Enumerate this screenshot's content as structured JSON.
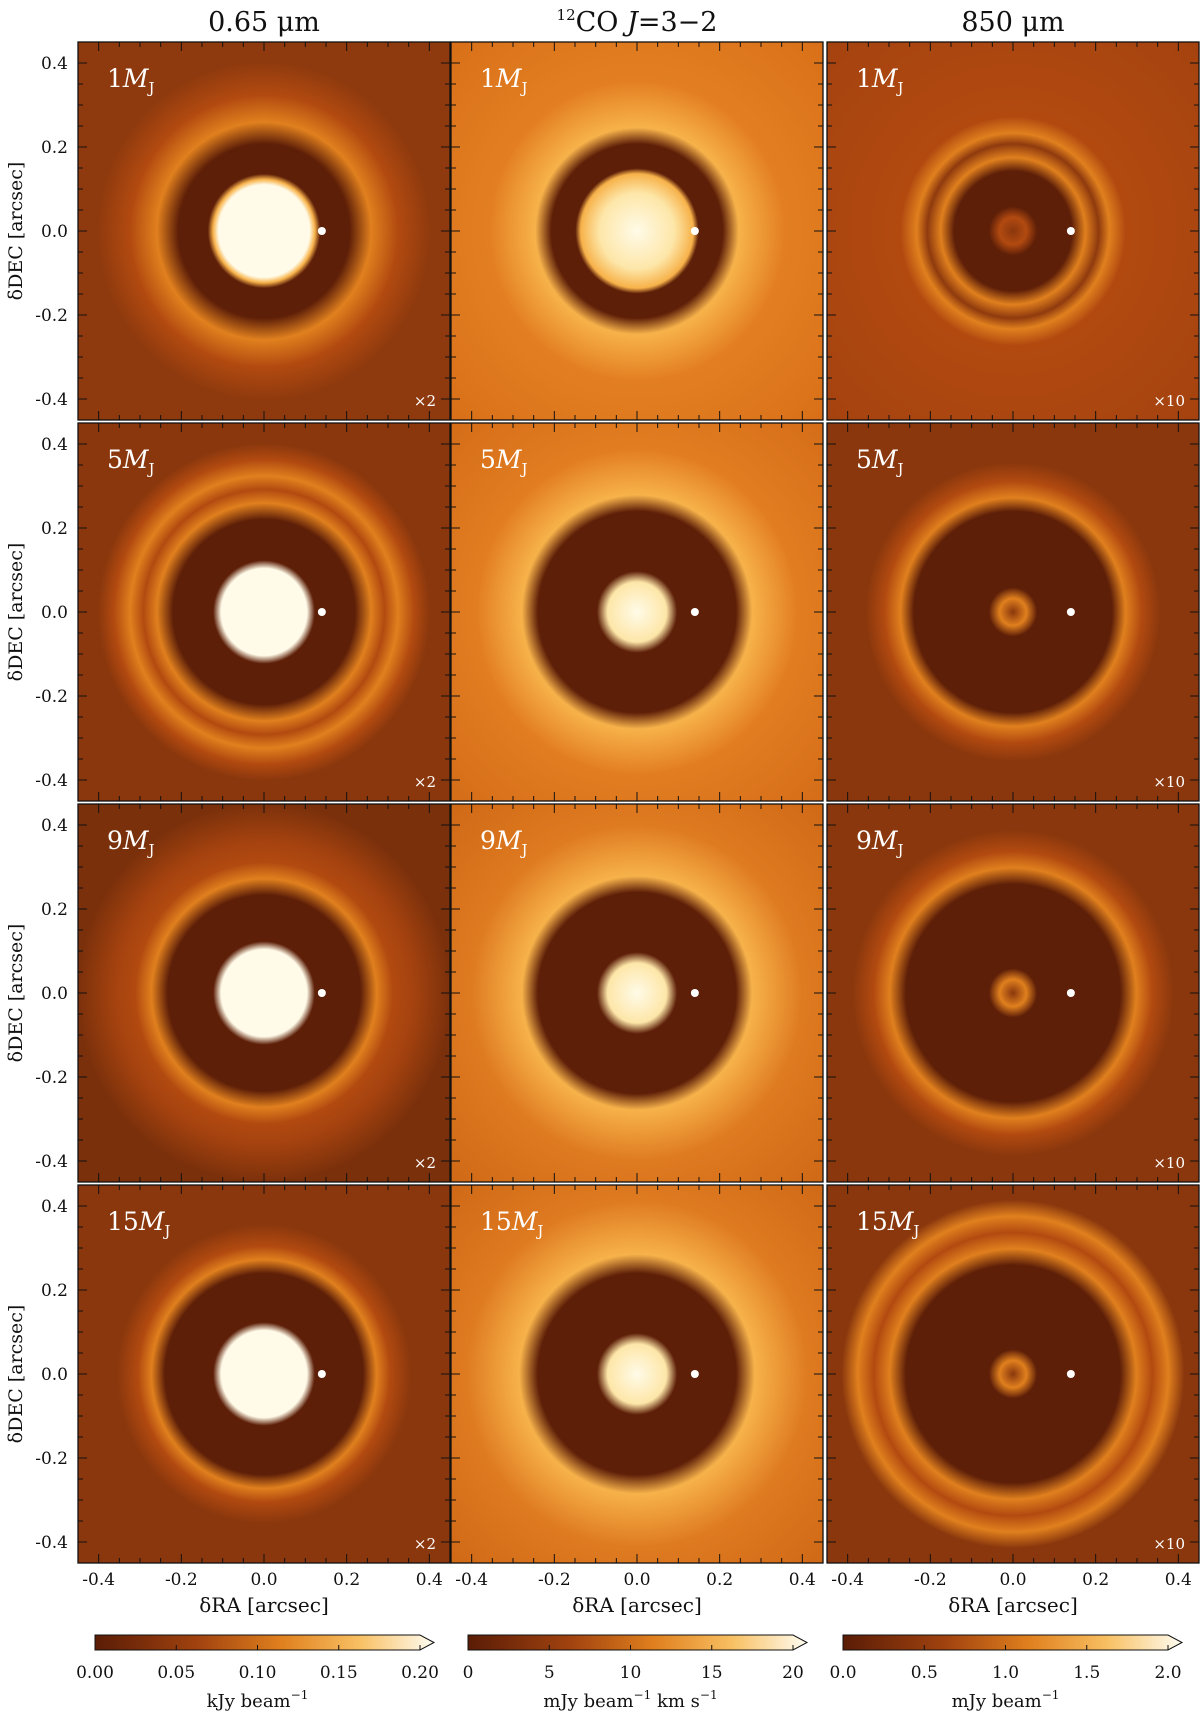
{
  "figure": {
    "column_titles": [
      "0.65 μm",
      "12CO J=3−2",
      "850 μm"
    ],
    "column_title_co": {
      "sup": "12",
      "main": "CO ",
      "italic": "J",
      "rest": "=3−2"
    },
    "row_labels": [
      {
        "num": "1",
        "italic": "M",
        "sub": "J"
      },
      {
        "num": "5",
        "italic": "M",
        "sub": "J"
      },
      {
        "num": "9",
        "italic": "M",
        "sub": "J"
      },
      {
        "num": "15",
        "italic": "M",
        "sub": "J"
      }
    ],
    "scale_factors": [
      "×2",
      "",
      "×10"
    ],
    "ylabel": "δDEC [arcsec]",
    "xlabel": "δRA [arcsec]",
    "yticks": [
      "0.4",
      "0.2",
      "0.0",
      "-0.2",
      "-0.4"
    ],
    "xticks": [
      "-0.4",
      "-0.2",
      "0.0",
      "0.2",
      "0.4"
    ],
    "colorbars": [
      {
        "ticks": [
          "0.00",
          "0.05",
          "0.10",
          "0.15",
          "0.20"
        ],
        "unit": {
          "a": "kJy beam",
          "sup1": "−1",
          "b": "",
          "sup2": ""
        }
      },
      {
        "ticks": [
          "0",
          "5",
          "10",
          "15",
          "20"
        ],
        "unit": {
          "a": "mJy beam",
          "sup1": "−1",
          "b": " km s",
          "sup2": "−1"
        }
      },
      {
        "ticks": [
          "0.0",
          "0.5",
          "1.0",
          "1.5",
          "2.0"
        ],
        "unit": {
          "a": "mJy beam",
          "sup1": "−1",
          "b": "",
          "sup2": ""
        }
      }
    ],
    "colors": {
      "dark": "#5e1f08",
      "mid": "#b24a10",
      "bright": "#e0801e",
      "hot": "#f7b24a",
      "white": "#fffbe8"
    }
  }
}
